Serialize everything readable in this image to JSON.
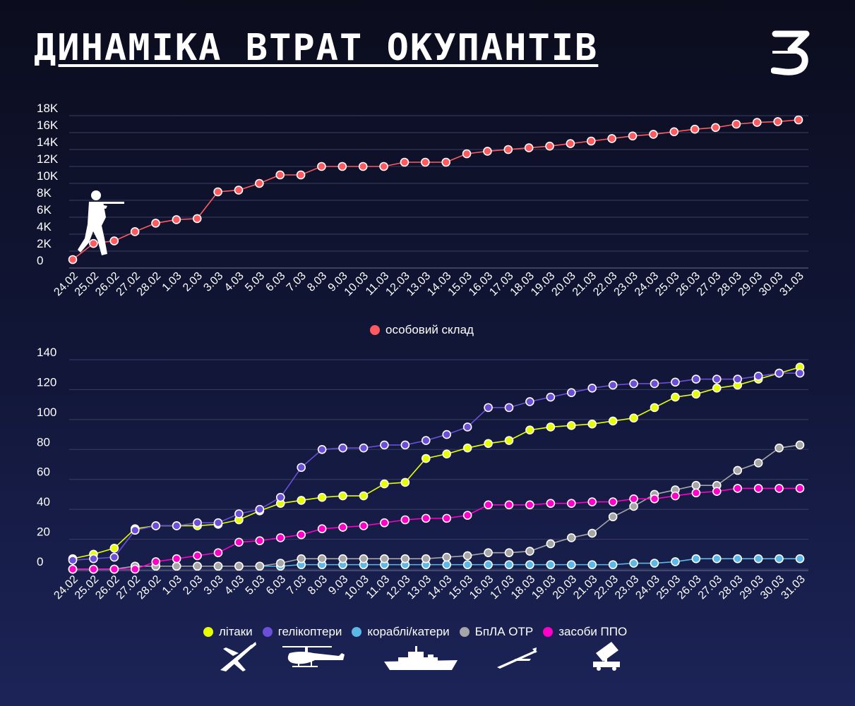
{
  "title": "ДИНАМІКА ВТРАТ ОКУПАНТІВ",
  "logo_text": "З",
  "colors": {
    "personnel": "#ff5a5f",
    "planes": "#e5ff00",
    "helicopters": "#6b4fd8",
    "ships": "#5cb8e6",
    "drones": "#a6a6a6",
    "air_defense": "#ff00c8"
  },
  "chart_data": [
    {
      "type": "line",
      "title": "",
      "xlabel": "",
      "ylabel": "",
      "ylim": [
        0,
        18000
      ],
      "grid": true,
      "legend": "bottom",
      "y_tick_labels": [
        "0",
        "2K",
        "4K",
        "6K",
        "8K",
        "10K",
        "12K",
        "14K",
        "16K",
        "18K"
      ],
      "x": [
        "24.02",
        "25.02",
        "26.02",
        "27.02",
        "28.02",
        "1.03",
        "2.03",
        "3.03",
        "4.03",
        "5.03",
        "6.03",
        "7.03",
        "8.03",
        "9.03",
        "10.03",
        "11.03",
        "12.03",
        "13.03",
        "14.03",
        "15.03",
        "16.03",
        "17.03",
        "18.03",
        "19.03",
        "20.03",
        "21.03",
        "22.03",
        "23.03",
        "24.03",
        "25.03",
        "26.03",
        "27.03",
        "28.03",
        "29.03",
        "30.03",
        "31.03"
      ],
      "series": [
        {
          "name": "особовий склад",
          "color": "#ff5a5f",
          "values": [
            1000,
            2900,
            3200,
            4300,
            5300,
            5710,
            5840,
            9000,
            9200,
            10000,
            11000,
            11000,
            12000,
            12000,
            12000,
            12000,
            12500,
            12500,
            12500,
            13500,
            13800,
            14000,
            14200,
            14400,
            14700,
            15000,
            15300,
            15600,
            15800,
            16100,
            16400,
            16600,
            17000,
            17200,
            17300,
            17500
          ]
        }
      ]
    },
    {
      "type": "line",
      "title": "",
      "xlabel": "",
      "ylabel": "",
      "ylim": [
        0,
        140
      ],
      "grid": true,
      "legend": "bottom",
      "y_tick_labels": [
        "0",
        "20",
        "40",
        "60",
        "80",
        "100",
        "120",
        "140"
      ],
      "x": [
        "24.02",
        "25.02",
        "26.02",
        "27.02",
        "28.02",
        "1.03",
        "2.03",
        "3.03",
        "4.03",
        "5.03",
        "6.03",
        "7.03",
        "8.03",
        "9.03",
        "10.03",
        "11.03",
        "12.03",
        "13.03",
        "14.03",
        "15.03",
        "16.03",
        "17.03",
        "18.03",
        "19.03",
        "20.03",
        "21.03",
        "22.03",
        "23.03",
        "24.03",
        "25.03",
        "26.03",
        "27.03",
        "28.03",
        "29.03",
        "30.03",
        "31.03"
      ],
      "series": [
        {
          "name": "літаки",
          "color": "#e5ff00",
          "values": [
            7,
            10,
            14,
            27,
            29,
            29,
            29,
            30,
            33,
            39,
            44,
            46,
            48,
            49,
            49,
            57,
            58,
            74,
            77,
            81,
            84,
            86,
            93,
            95,
            96,
            97,
            99,
            101,
            108,
            115,
            117,
            121,
            123,
            127,
            131,
            135
          ]
        },
        {
          "name": "гелікоптери",
          "color": "#6b4fd8",
          "values": [
            6,
            7,
            8,
            26,
            29,
            29,
            31,
            31,
            37,
            40,
            48,
            68,
            80,
            81,
            81,
            83,
            83,
            86,
            90,
            95,
            108,
            108,
            112,
            115,
            118,
            121,
            123,
            124,
            124,
            125,
            127,
            127,
            127,
            129,
            131,
            131
          ]
        },
        {
          "name": "кораблі/катери",
          "color": "#5cb8e6",
          "values": [
            0,
            0,
            0,
            2,
            2,
            2,
            2,
            2,
            2,
            2,
            2,
            3,
            3,
            3,
            3,
            3,
            3,
            3,
            3,
            3,
            3,
            3,
            3,
            3,
            3,
            3,
            3,
            4,
            4,
            5,
            7,
            7,
            7,
            7,
            7,
            7
          ]
        },
        {
          "name": "БпЛА ОТР",
          "color": "#a6a6a6",
          "values": [
            0,
            0,
            0,
            2,
            2,
            2,
            2,
            2,
            2,
            2,
            4,
            7,
            7,
            7,
            7,
            7,
            7,
            7,
            8,
            9,
            11,
            11,
            12,
            17,
            21,
            24,
            35,
            42,
            50,
            53,
            56,
            56,
            66,
            71,
            81,
            83
          ]
        },
        {
          "name": "засоби ППО",
          "color": "#ff00c8",
          "values": [
            0,
            0,
            0,
            0,
            5,
            7,
            9,
            11,
            18,
            19,
            21,
            23,
            27,
            28,
            29,
            31,
            33,
            34,
            34,
            36,
            43,
            43,
            43,
            44,
            44,
            45,
            45,
            47,
            47,
            49,
            51,
            52,
            54,
            54,
            54,
            54
          ]
        }
      ]
    }
  ],
  "pictograms": [
    "soldier-icon",
    "plane-icon",
    "helicopter-icon",
    "ship-icon",
    "drone-icon",
    "rocket-launcher-icon"
  ]
}
